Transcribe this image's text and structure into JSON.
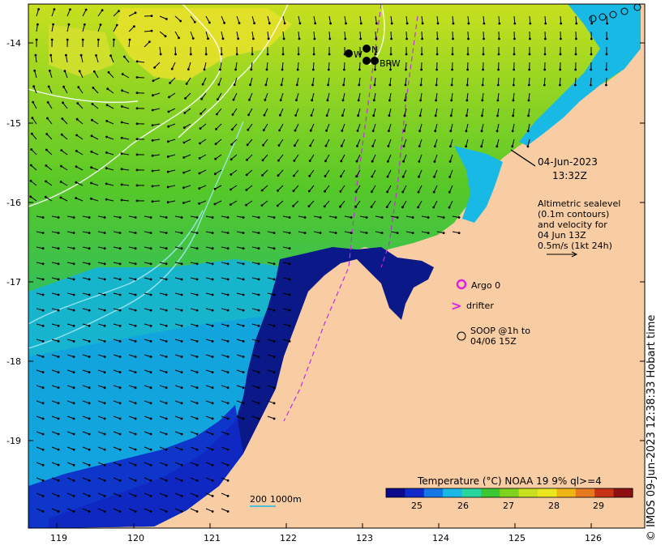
{
  "map": {
    "datetime_line1": "04-Jun-2023",
    "datetime_line2": "13:32Z",
    "altimetry_notes": [
      "Altimetric sealevel",
      "(0.1m contours)",
      "and velocity for",
      "04 Jun 13Z",
      "0.5m/s (1kt 24h)"
    ],
    "legend": {
      "argo": "Argo 0",
      "drifter_symbol": ">",
      "drifter": "drifter",
      "soop_line1": "SOOP @1h to",
      "soop_line2": "04/06 15Z"
    },
    "colorbar": {
      "title": "Temperature (°C) NOAA 19 9% ql>=4",
      "ticks": [
        "25",
        "26",
        "27",
        "28",
        "29"
      ],
      "colors": [
        "#0a0a8a",
        "#0f2ac8",
        "#1477e6",
        "#19b9e6",
        "#2ad6a0",
        "#3cc832",
        "#7fd21e",
        "#c8e01e",
        "#ece61e",
        "#f0b414",
        "#e6781e",
        "#c83214",
        "#8c1010"
      ]
    },
    "scale_bar": {
      "left": "200",
      "right": "1000m"
    },
    "stations": {
      "w": "W",
      "n": "N",
      "brw": "BRW"
    },
    "lon_ticks": [
      "119",
      "120",
      "121",
      "122",
      "123",
      "124",
      "125",
      "126"
    ],
    "lat_ticks": [
      "-14",
      "-15",
      "-16",
      "-17",
      "-18",
      "-19"
    ],
    "credit": "© IMOS 09-Jun-2023 12:38:33 Hobart time",
    "colors": {
      "land": "#f8cda4",
      "warm_sst": "#44c02a",
      "cold_sst": "#0a1888",
      "arrow": "#000000",
      "contour": "#ffffff"
    }
  }
}
